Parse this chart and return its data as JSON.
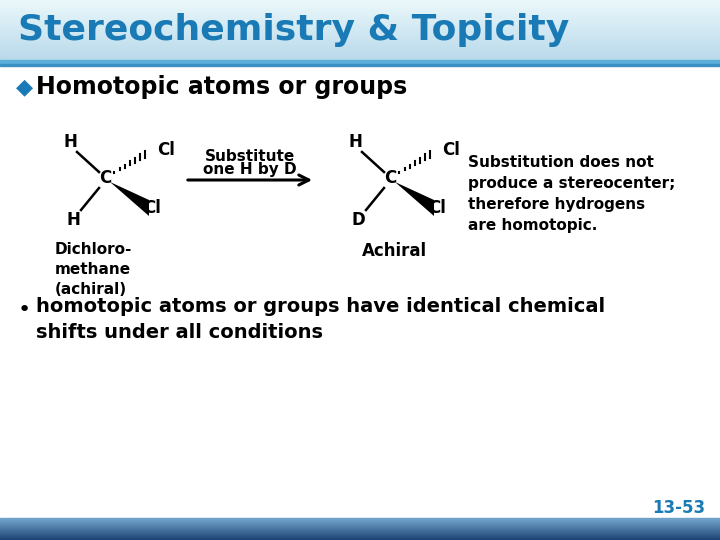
{
  "title": "Stereochemistry & Topicity",
  "title_color": "#1a7ab5",
  "bg_color": "#ffffff",
  "header_bullet": "◆",
  "header_text": "Homotopic atoms or groups",
  "header_color": "#000000",
  "bullet_color": "#1a7ab5",
  "mol1_label": "Dichloro-\nmethane\n(achiral)",
  "arrow_label_top": "Substitute",
  "arrow_label_bot": "one H by D",
  "mol2_label": "Achiral",
  "description": "Substitution does not\nproduce a stereocenter;\ntherefore hydrogens\nare homotopic.",
  "bullet2_text": "homotopic atoms or groups have identical chemical\nshifts under all conditions",
  "page_number": "13-53",
  "page_num_color": "#1a7ab5",
  "header_bar_color": "#d0e8f4",
  "bottom_bar_color": "#2a5a90"
}
